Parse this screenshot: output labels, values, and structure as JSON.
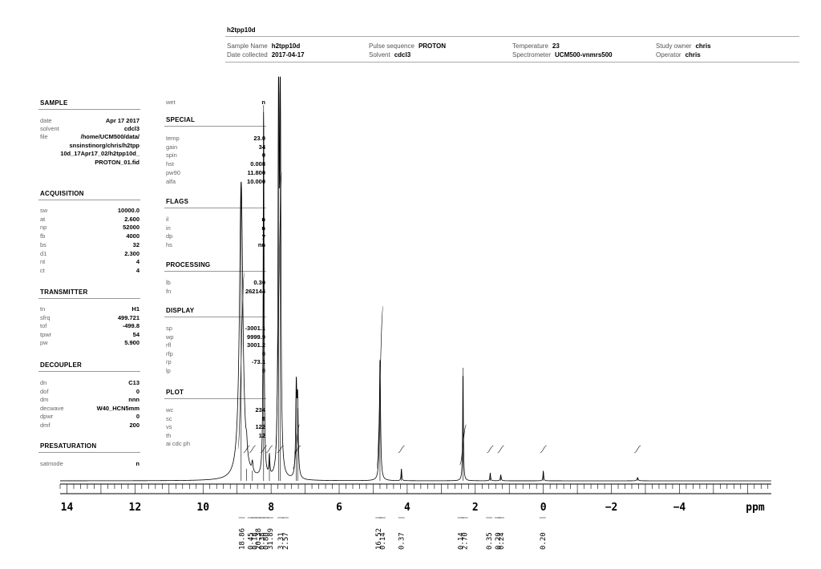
{
  "header": {
    "title": "h2tpp10d",
    "cells": [
      {
        "key": "Sample Name",
        "value": "h2tpp10d"
      },
      {
        "key": "Date collected",
        "value": "2017-04-17"
      },
      {
        "key": "Pulse sequence",
        "value": "PROTON"
      },
      {
        "key": "Solvent",
        "value": "cdcl3"
      },
      {
        "key": "Temperature",
        "value": "23"
      },
      {
        "key": "Spectrometer",
        "value": "UCM500-vnmrs500"
      },
      {
        "key": "Study owner",
        "value": "chris"
      },
      {
        "key": "Operator",
        "value": "chris"
      }
    ]
  },
  "params_left": {
    "sample": {
      "title": "SAMPLE",
      "rows": [
        {
          "key": "date",
          "value": "Apr 17 2017"
        },
        {
          "key": "solvent",
          "value": "cdcl3"
        },
        {
          "key": "file",
          "value": "/home/UCM500/data/"
        }
      ],
      "file_cont": [
        "snsinstinorg/chris/h2tpp",
        "10d_17Apr17_02/h2tpp10d_",
        "PROTON_01.fid"
      ]
    },
    "acquisition": {
      "title": "ACQUISITION",
      "rows": [
        {
          "key": "sw",
          "value": "10000.0"
        },
        {
          "key": "at",
          "value": "2.600"
        },
        {
          "key": "np",
          "value": "52000"
        },
        {
          "key": "fb",
          "value": "4000"
        },
        {
          "key": "bs",
          "value": "32"
        },
        {
          "key": "d1",
          "value": "2.300"
        },
        {
          "key": "nt",
          "value": "4"
        },
        {
          "key": "ct",
          "value": "4"
        }
      ]
    },
    "transmitter": {
      "title": "TRANSMITTER",
      "rows": [
        {
          "key": "tn",
          "value": "H1"
        },
        {
          "key": "sfrq",
          "value": "499.721"
        },
        {
          "key": "tof",
          "value": "-499.8"
        },
        {
          "key": "tpwr",
          "value": "54"
        },
        {
          "key": "pw",
          "value": "5.900"
        }
      ]
    },
    "decoupler": {
      "title": "DECOUPLER",
      "rows": [
        {
          "key": "dn",
          "value": "C13"
        },
        {
          "key": "dof",
          "value": "0"
        },
        {
          "key": "dm",
          "value": "nnn"
        },
        {
          "key": "decwave",
          "value": "W40_HCN5mm"
        },
        {
          "key": "dpwr",
          "value": "0"
        },
        {
          "key": "dmf",
          "value": "200"
        }
      ]
    },
    "presaturation": {
      "title": "PRESATURATION",
      "rows": [
        {
          "key": "satmode",
          "value": "n"
        }
      ]
    }
  },
  "params_right": {
    "wet": {
      "key": "wet",
      "value": "n"
    },
    "special": {
      "title": "SPECIAL",
      "rows": [
        {
          "key": "temp",
          "value": "23.0"
        },
        {
          "key": "gain",
          "value": "34"
        },
        {
          "key": "spin",
          "value": "0"
        },
        {
          "key": "hst",
          "value": "0.008"
        },
        {
          "key": "pw90",
          "value": "11.800"
        },
        {
          "key": "alfa",
          "value": "10.000"
        }
      ]
    },
    "flags": {
      "title": "FLAGS",
      "rows": [
        {
          "key": "il",
          "value": "n"
        },
        {
          "key": "in",
          "value": "n"
        },
        {
          "key": "dp",
          "value": "y"
        },
        {
          "key": "hs",
          "value": "nn"
        }
      ]
    },
    "processing": {
      "title": "PROCESSING",
      "rows": [
        {
          "key": "lb",
          "value": "0.30"
        },
        {
          "key": "fn",
          "value": "262144"
        }
      ]
    },
    "display": {
      "title": "DISPLAY",
      "rows": [
        {
          "key": "sp",
          "value": "-3001.1"
        },
        {
          "key": "wp",
          "value": "9999.9"
        },
        {
          "key": "rfl",
          "value": "3001.2"
        },
        {
          "key": "rfp",
          "value": "0"
        },
        {
          "key": "rp",
          "value": "-73.1"
        },
        {
          "key": "lp",
          "value": "0"
        }
      ]
    },
    "plot": {
      "title": "PLOT",
      "rows": [
        {
          "key": "wc",
          "value": "234"
        },
        {
          "key": "sc",
          "value": "8"
        },
        {
          "key": "vs",
          "value": "122"
        },
        {
          "key": "th",
          "value": "12"
        },
        {
          "key": "ai  cdc  ph",
          "value": ""
        }
      ]
    }
  },
  "chart_data": {
    "type": "line",
    "xlabel": "ppm",
    "xlim": [
      14.2,
      -6.7
    ],
    "x_reversed": true,
    "tick_labels": [
      14,
      12,
      10,
      8,
      6,
      4,
      2,
      0,
      -2,
      -4
    ],
    "peaks": [
      {
        "x": 8.88,
        "height": 0.74,
        "width": 0.06
      },
      {
        "x": 8.72,
        "height": 0.03,
        "width": 0.02
      },
      {
        "x": 8.55,
        "height": 0.025,
        "width": 0.02
      },
      {
        "x": 8.22,
        "height": 0.93,
        "width": 0.015
      },
      {
        "x": 8.05,
        "height": 0.05,
        "width": 0.015
      },
      {
        "x": 7.78,
        "height": 1.0,
        "width": 0.018
      },
      {
        "x": 7.73,
        "height": 0.97,
        "width": 0.02
      },
      {
        "x": 7.26,
        "height": 0.22,
        "width": 0.02
      },
      {
        "x": 7.22,
        "height": 0.18,
        "width": 0.02
      },
      {
        "x": 4.8,
        "height": 0.3,
        "width": 0.02
      },
      {
        "x": 4.17,
        "height": 0.03,
        "width": 0.012
      },
      {
        "x": 2.36,
        "height": 0.28,
        "width": 0.012
      },
      {
        "x": 1.56,
        "height": 0.02,
        "width": 0.012
      },
      {
        "x": 1.25,
        "height": 0.015,
        "width": 0.015
      },
      {
        "x": 0.0,
        "height": 0.025,
        "width": 0.012
      },
      {
        "x": -2.77,
        "height": 0.008,
        "width": 0.02
      }
    ],
    "integrals": [
      {
        "x": 8.86,
        "label": "18.86"
      },
      {
        "x": 8.6,
        "label": "0.45"
      },
      {
        "x": 8.49,
        "label": "0.18"
      },
      {
        "x": 8.38,
        "label": "20.38"
      },
      {
        "x": 8.27,
        "label": "0.38"
      },
      {
        "x": 8.16,
        "label": "0.80"
      },
      {
        "x": 8.03,
        "label": "31.89"
      },
      {
        "x": 7.72,
        "label": "3.31"
      },
      {
        "x": 7.58,
        "label": "2.57"
      },
      {
        "x": 4.84,
        "label": "16.52"
      },
      {
        "x": 4.73,
        "label": "0.14"
      },
      {
        "x": 4.17,
        "label": "0.37"
      },
      {
        "x": 2.43,
        "label": "0.14"
      },
      {
        "x": 2.31,
        "label": "2.70"
      },
      {
        "x": 1.59,
        "label": "0.35"
      },
      {
        "x": 1.34,
        "label": "0.20"
      },
      {
        "x": 1.24,
        "label": "0.24"
      },
      {
        "x": 0.02,
        "label": "0.20"
      }
    ]
  }
}
